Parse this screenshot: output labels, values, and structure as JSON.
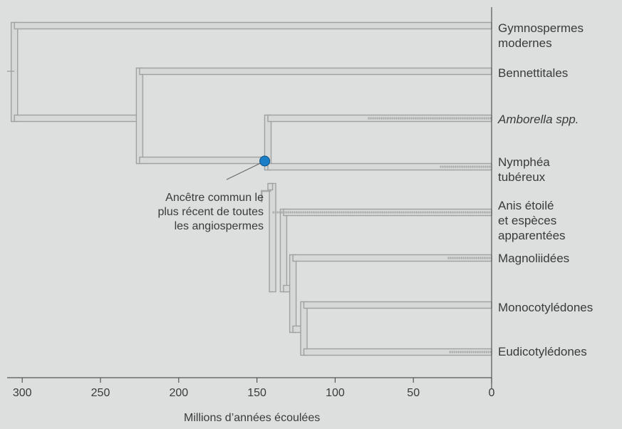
{
  "taxa": [
    {
      "id": "gymnospermes",
      "lines": [
        "Gymnospermes",
        "modernes"
      ],
      "italic": false
    },
    {
      "id": "bennettitales",
      "lines": [
        "Bennettitales"
      ],
      "italic": false
    },
    {
      "id": "amborella",
      "lines": [
        "Amborella spp."
      ],
      "italic": true
    },
    {
      "id": "nymphea",
      "lines": [
        "Nymphéa",
        "tubéreux"
      ],
      "italic": false
    },
    {
      "id": "anis",
      "lines": [
        "Anis étoilé",
        "et espèces",
        "apparentées"
      ],
      "italic": false
    },
    {
      "id": "magnoliidees",
      "lines": [
        "Magnoliidées"
      ],
      "italic": false
    },
    {
      "id": "monocotyledones",
      "lines": [
        "Monocotylédones"
      ],
      "italic": false
    },
    {
      "id": "eudicotyledones",
      "lines": [
        "Eudicotylédones"
      ],
      "italic": false
    }
  ],
  "axis": {
    "title": "Millions d’années écoulées",
    "min": 0,
    "max": 300,
    "reversed": true,
    "ticks": [
      "300",
      "250",
      "200",
      "150",
      "100",
      "50",
      "0"
    ]
  },
  "annotation": {
    "lines": [
      "Ancêtre commun le",
      "plus récent de toutes",
      "les angiospermes"
    ],
    "age_mya": 145
  },
  "nodes": [
    {
      "name": "root",
      "age_mya": 305
    },
    {
      "name": "bennettitales-angiospermes",
      "age_mya": 225
    },
    {
      "name": "angiospermes",
      "age_mya": 143
    },
    {
      "name": "anis-reste",
      "age_mya": 133
    },
    {
      "name": "magnoliidees-reste",
      "age_mya": 127
    },
    {
      "name": "monocots-eudicots",
      "age_mya": 120
    }
  ],
  "colors": {
    "background": "#dcdfde",
    "branch_fill": "#d6d9d8",
    "branch_stroke": "#9ea1a0",
    "fossil_dashed": "#a7a9a8",
    "ancestor_dot": "#1a7fc6",
    "axis": "#555555",
    "text": "#3a3a3a"
  }
}
